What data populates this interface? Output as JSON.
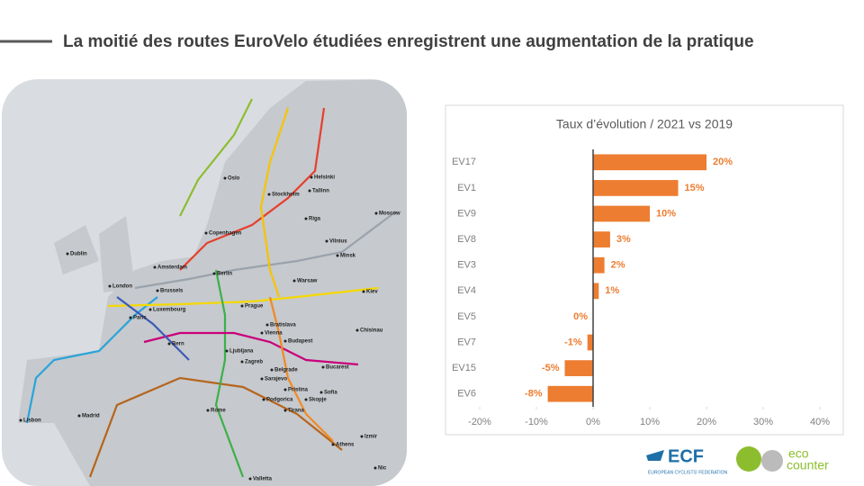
{
  "header": {
    "title": "La moitié des routes EuroVelo étudiées enregistrent une augmentation de la pratique"
  },
  "map": {
    "cities": [
      "Oslo",
      "Helsinki",
      "Stockholm",
      "Tallinn",
      "Riga",
      "Moscow",
      "Copenhagen",
      "Vilnius",
      "Dublin",
      "Minsk",
      "Amsterdam",
      "Berlin",
      "London",
      "Warsaw",
      "Brussels",
      "Kiev",
      "Luxembourg",
      "Prague",
      "Paris",
      "Bratislava",
      "Chisinau",
      "Vienna",
      "Bern",
      "Budapest",
      "Ljubljana",
      "Zagreb",
      "Belgrade",
      "Bucarest",
      "Sarajevo",
      "Pristina",
      "Sofia",
      "Podgorica",
      "Skopje",
      "Rome",
      "Tirana",
      "Madrid",
      "Lisbon",
      "Athens",
      "Izmir",
      "Valletta",
      "Nic"
    ]
  },
  "logos": {
    "ecf": "ECF",
    "ecf_sub": "EUROPEAN CYCLISTS' FEDERATION",
    "eco": "eco",
    "counter": "counter"
  },
  "chart_data": {
    "type": "bar",
    "orientation": "horizontal",
    "title": "Taux d’évolution / 2021 vs 2019",
    "categories": [
      "EV17",
      "EV1",
      "EV9",
      "EV8",
      "EV3",
      "EV4",
      "EV5",
      "EV7",
      "EV15",
      "EV6"
    ],
    "values": [
      20,
      15,
      10,
      3,
      2,
      1,
      0,
      -1,
      -5,
      -8
    ],
    "value_labels": [
      "20%",
      "15%",
      "10%",
      "3%",
      "2%",
      "1%",
      "0%",
      "-1%",
      "-5%",
      "-8%"
    ],
    "color": "#ED7D31",
    "xlim": [
      -20,
      40
    ],
    "xticks": [
      {
        "value": -20,
        "label": "-20%"
      },
      {
        "value": -10,
        "label": "-10%"
      },
      {
        "value": 0,
        "label": "0%"
      },
      {
        "value": 10,
        "label": "10%"
      },
      {
        "value": 20,
        "label": "20%"
      },
      {
        "value": 30,
        "label": "30%"
      },
      {
        "value": 40,
        "label": "40%"
      }
    ],
    "grid": false
  }
}
